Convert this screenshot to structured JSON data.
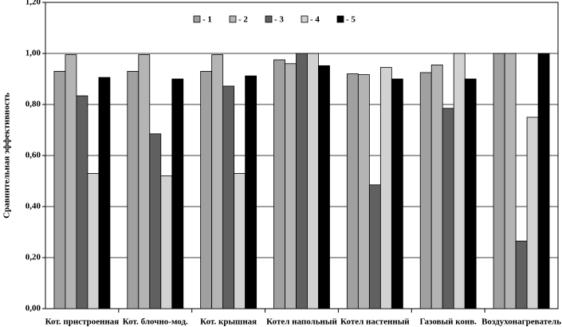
{
  "chart_data": {
    "type": "bar",
    "y_label": "Сравнительная эффективность",
    "categories": [
      "Кот. пристроенная",
      "Кот. блочно-мод.",
      "Кот. крышная",
      "Котел напольный",
      "Котел настенный",
      "Газовый конв.",
      "Воздухонагреватель"
    ],
    "series": [
      {
        "name": "- 1",
        "color": "#a0a0a0",
        "values": [
          0.93,
          0.93,
          0.93,
          0.975,
          0.92,
          0.925,
          1.0
        ]
      },
      {
        "name": "- 2",
        "color": "#b4b4b4",
        "values": [
          0.995,
          0.995,
          0.995,
          0.96,
          0.917,
          0.955,
          1.0
        ]
      },
      {
        "name": "- 3",
        "color": "#606060",
        "values": [
          0.834,
          0.685,
          0.872,
          1.0,
          0.485,
          0.785,
          0.265
        ]
      },
      {
        "name": "- 4",
        "color": "#d2d2d2",
        "values": [
          0.53,
          0.52,
          0.53,
          1.0,
          0.945,
          1.0,
          0.75
        ]
      },
      {
        "name": "- 5",
        "color": "#000000",
        "values": [
          0.906,
          0.9,
          0.912,
          0.952,
          0.9,
          0.9,
          1.0
        ]
      }
    ],
    "ylim": [
      0,
      1.2
    ],
    "yticks": [
      {
        "value": 0,
        "label": "0,00"
      },
      {
        "value": 0.2,
        "label": "0,20"
      },
      {
        "value": 0.4,
        "label": "0,40"
      },
      {
        "value": 0.6,
        "label": "0,60"
      },
      {
        "value": 0.8,
        "label": "0,80"
      },
      {
        "value": 1.0,
        "label": "1,00"
      },
      {
        "value": 1.2,
        "label": "1,20"
      }
    ],
    "grid": true
  }
}
